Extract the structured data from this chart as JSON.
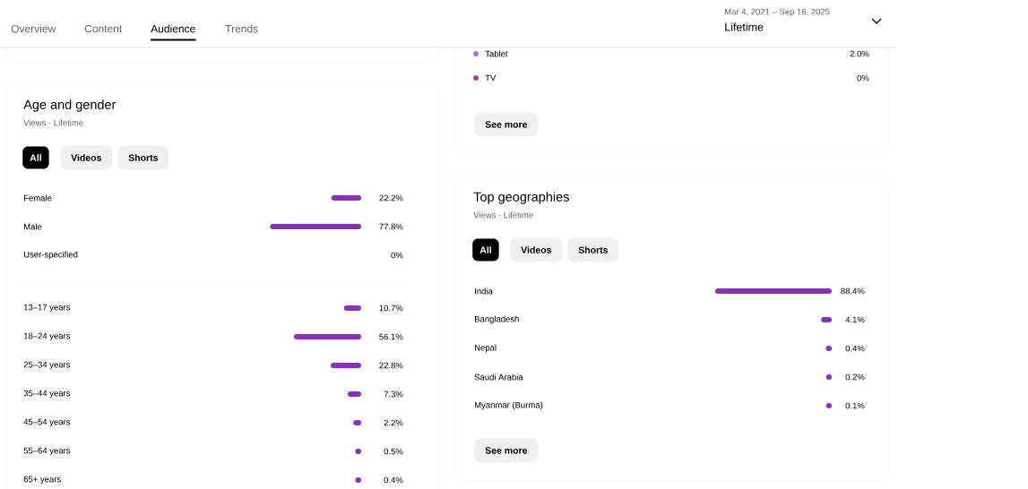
{
  "chart_data": [
    {
      "type": "other",
      "annotations": [
        "Overview",
        "Content",
        "Audience",
        "Trends",
        "Mar 4, 2021 – Sep 16, 2025",
        "Lifetime"
      ]
    },
    {
      "type": "bar",
      "title": "Age and gender",
      "subtitle": "Views · Lifetime",
      "annotations": [
        "All",
        "Videos",
        "Shorts"
      ],
      "orientation": "horizontal",
      "color": "#8c2fc0",
      "categories": [
        "Female",
        "Male",
        "User-specified"
      ],
      "values": [
        22.2,
        77.8,
        0
      ],
      "value_labels": [
        "22.2%",
        "77.8%",
        "0%"
      ]
    },
    {
      "type": "bar",
      "orientation": "horizontal",
      "color": "#8c2fc0",
      "categories": [
        "13–17 years",
        "18–24 years",
        "25–34 years",
        "35–44 years",
        "45–54 years",
        "55–64 years",
        "65+ years"
      ],
      "values": [
        10.7,
        56.1,
        22.8,
        7.3,
        2.2,
        0.5,
        0.4
      ],
      "value_labels": [
        "10.7%",
        "56.1%",
        "22.8%",
        "7.3%",
        "2.2%",
        "0.5%",
        "0.4%"
      ]
    },
    {
      "type": "other",
      "annotations": [
        "See more"
      ],
      "categories": [
        "Tablet",
        "TV"
      ],
      "values": [
        2.0,
        0
      ],
      "value_labels": [
        "2.0%",
        "0%"
      ],
      "colors": [
        "#b565e8",
        "#cc2a82"
      ]
    },
    {
      "type": "bar",
      "title": "Top geographies",
      "subtitle": "Views · Lifetime",
      "annotations": [
        "All",
        "Videos",
        "Shorts",
        "See more"
      ],
      "orientation": "horizontal",
      "color": "#8c2fc0",
      "categories": [
        "India",
        "Bangladesh",
        "Nepal",
        "Saudi Arabia",
        "Myanmar (Burma)"
      ],
      "values": [
        88.4,
        4.1,
        0.4,
        0.2,
        0.1
      ],
      "value_labels": [
        "88.4%",
        "4.1%",
        "0.4%",
        "0.2%",
        "0.1%"
      ]
    }
  ]
}
